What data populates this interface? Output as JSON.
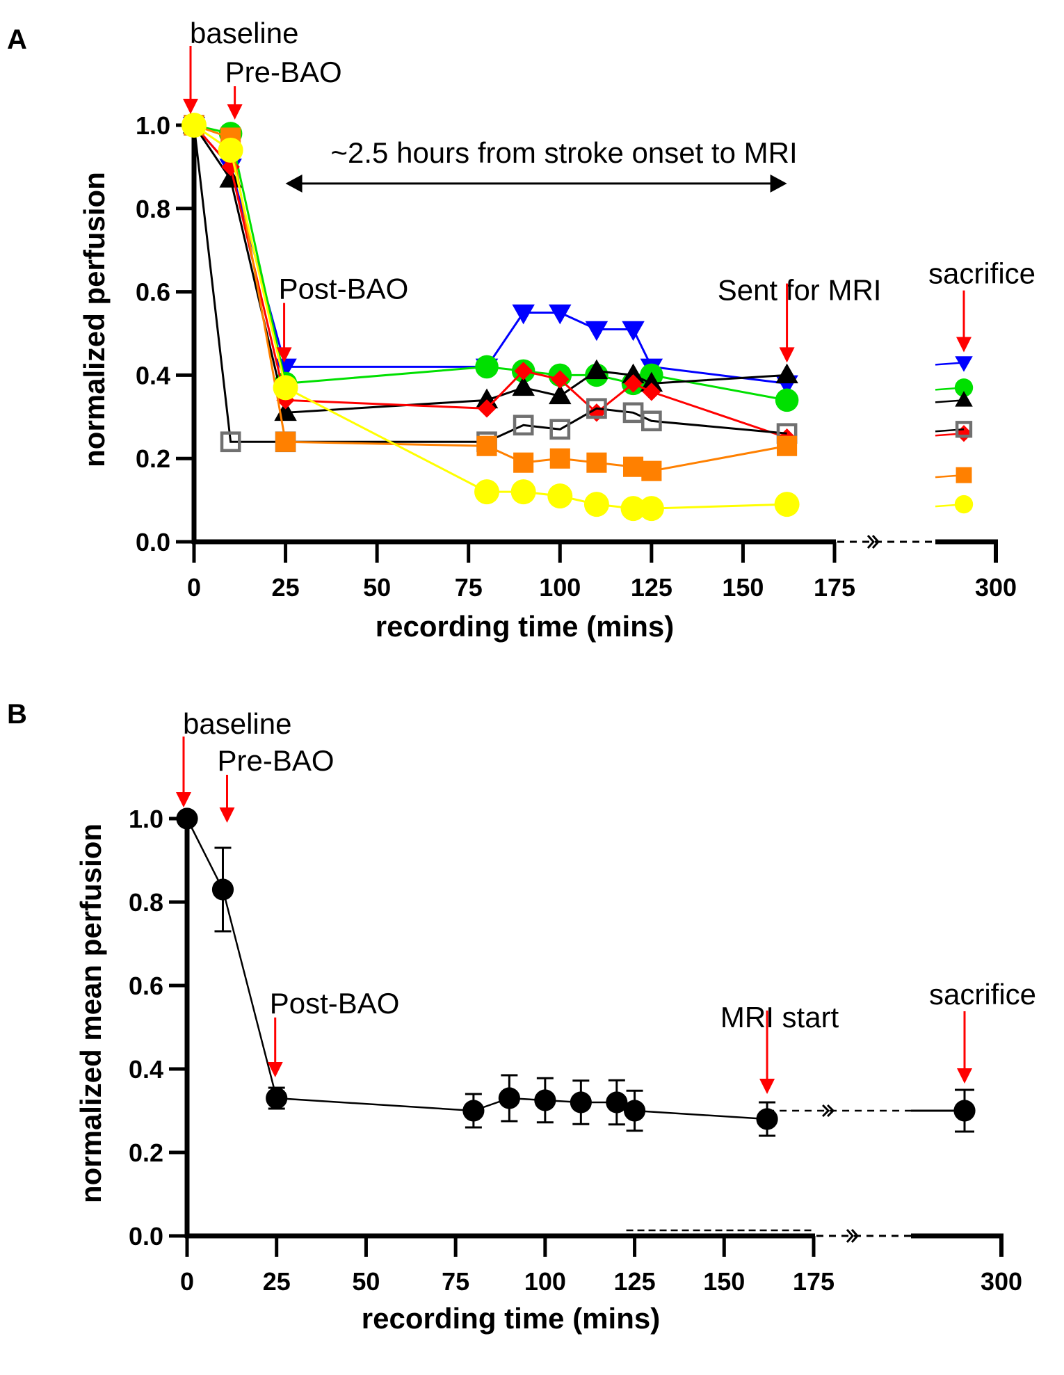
{
  "colors": {
    "annotation_arrow": "#ff0000",
    "axis": "#000000"
  },
  "chart_data": [
    {
      "panel": "A",
      "type": "line",
      "xlabel": "recording time (mins)",
      "ylabel": "normalized perfusion",
      "xlim": [
        0,
        175
      ],
      "x_break_label": "300",
      "ylim": [
        0,
        1.0
      ],
      "xticks": [
        "0",
        "25",
        "50",
        "75",
        "100",
        "125",
        "150",
        "175"
      ],
      "yticks": [
        "0.0",
        "0.2",
        "0.4",
        "0.6",
        "0.8",
        "1.0"
      ],
      "grid": false,
      "legend": "none",
      "annotations": [
        {
          "text": "baseline",
          "x": 0
        },
        {
          "text": "Pre-BAO",
          "x": 10
        },
        {
          "text": "Post-BAO",
          "x": 25
        },
        {
          "text": "Sent for MRI",
          "x": 162
        },
        {
          "text": "sacrifice",
          "x": 300
        },
        {
          "text": "~2.5 hours from stroke onset to MRI",
          "x_from": 25,
          "x_to": 162
        }
      ],
      "series": [
        {
          "name": "animal-blue",
          "color": "#0000ff",
          "marker": "triangle-down",
          "x": [
            0,
            10,
            25,
            80,
            90,
            100,
            110,
            120,
            125,
            162
          ],
          "y": [
            1.0,
            0.9,
            0.42,
            0.42,
            0.55,
            0.55,
            0.51,
            0.51,
            0.42,
            0.38
          ],
          "sacrifice_y": 0.43
        },
        {
          "name": "animal-green",
          "color": "#00e000",
          "marker": "circle",
          "x": [
            0,
            10,
            25,
            80,
            90,
            100,
            110,
            120,
            125,
            162
          ],
          "y": [
            1.0,
            0.98,
            0.38,
            0.42,
            0.41,
            0.4,
            0.4,
            0.38,
            0.4,
            0.34
          ],
          "sacrifice_y": 0.37
        },
        {
          "name": "animal-black",
          "color": "#000000",
          "marker": "triangle-up",
          "x": [
            0,
            10,
            25,
            80,
            90,
            100,
            110,
            120,
            125,
            162
          ],
          "y": [
            1.0,
            0.87,
            0.31,
            0.34,
            0.37,
            0.35,
            0.41,
            0.4,
            0.38,
            0.4
          ],
          "sacrifice_y": 0.34
        },
        {
          "name": "animal-red",
          "color": "#ff0000",
          "marker": "diamond",
          "x": [
            0,
            10,
            25,
            80,
            90,
            100,
            110,
            120,
            125,
            162
          ],
          "y": [
            1.0,
            0.9,
            0.34,
            0.32,
            0.41,
            0.39,
            0.31,
            0.38,
            0.36,
            0.25
          ],
          "sacrifice_y": 0.26
        },
        {
          "name": "animal-gray",
          "color": "#707070",
          "line_color": "#000000",
          "marker": "square-open",
          "x": [
            0,
            10,
            25,
            80,
            90,
            100,
            110,
            120,
            125,
            162
          ],
          "y": [
            1.0,
            0.24,
            0.24,
            0.24,
            0.28,
            0.27,
            0.32,
            0.31,
            0.29,
            0.26
          ],
          "sacrifice_y": 0.27
        },
        {
          "name": "animal-orange",
          "color": "#ff8000",
          "marker": "square",
          "x": [
            0,
            10,
            25,
            80,
            90,
            100,
            110,
            120,
            125,
            162
          ],
          "y": [
            1.0,
            0.97,
            0.24,
            0.23,
            0.19,
            0.2,
            0.19,
            0.18,
            0.17,
            0.23
          ],
          "sacrifice_y": 0.16
        },
        {
          "name": "animal-yellow",
          "color": "#ffff00",
          "marker": "circle",
          "x": [
            0,
            10,
            25,
            80,
            90,
            100,
            110,
            120,
            125,
            162
          ],
          "y": [
            1.0,
            0.94,
            0.37,
            0.12,
            0.12,
            0.11,
            0.09,
            0.08,
            0.08,
            0.09
          ],
          "sacrifice_y": 0.09
        }
      ]
    },
    {
      "panel": "B",
      "type": "line",
      "xlabel": "recording time (mins)",
      "ylabel": "normalized mean perfusion",
      "xlim": [
        0,
        175
      ],
      "x_break_label": "300",
      "ylim": [
        0,
        1.0
      ],
      "xticks": [
        "0",
        "25",
        "50",
        "75",
        "100",
        "125",
        "150",
        "175"
      ],
      "yticks": [
        "0.0",
        "0.2",
        "0.4",
        "0.6",
        "0.8",
        "1.0"
      ],
      "grid": false,
      "legend": "none",
      "annotations": [
        {
          "text": "baseline",
          "x": 0
        },
        {
          "text": "Pre-BAO",
          "x": 10
        },
        {
          "text": "Post-BAO",
          "x": 25
        },
        {
          "text": "MRI start",
          "x": 162
        },
        {
          "text": "sacrifice",
          "x": 300
        }
      ],
      "series": [
        {
          "name": "mean",
          "color": "#000000",
          "marker": "circle",
          "x": [
            0,
            10,
            25,
            80,
            90,
            100,
            110,
            120,
            125,
            162
          ],
          "y": [
            1.0,
            0.83,
            0.33,
            0.3,
            0.33,
            0.325,
            0.32,
            0.32,
            0.3,
            0.28
          ],
          "err": [
            0.0,
            0.1,
            0.025,
            0.04,
            0.055,
            0.053,
            0.052,
            0.053,
            0.048,
            0.04
          ],
          "sacrifice_y": 0.3,
          "sacrifice_err": 0.05
        }
      ]
    }
  ]
}
